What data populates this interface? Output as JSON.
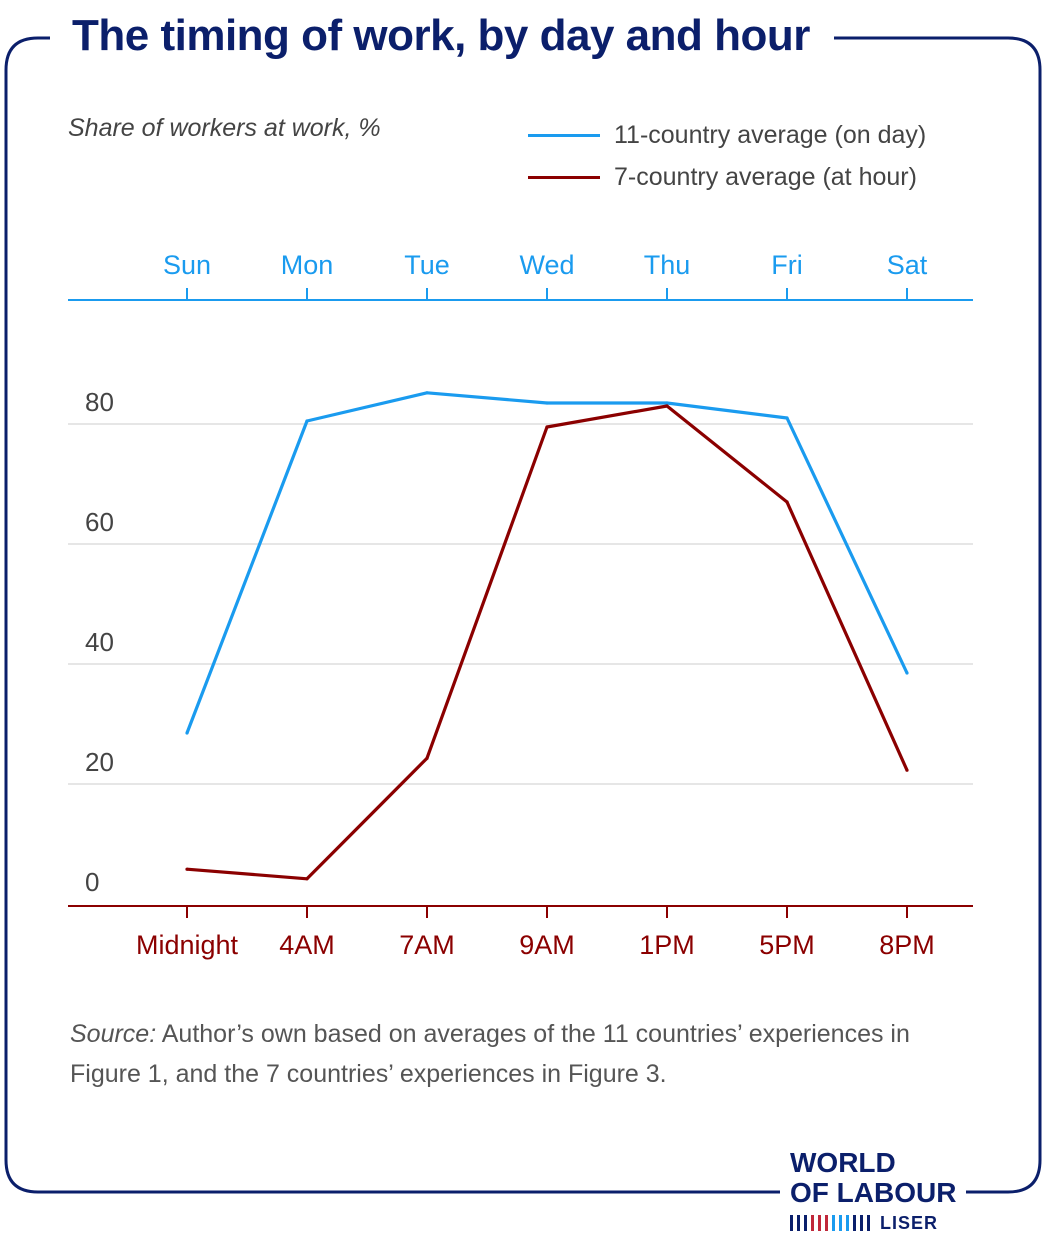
{
  "title": "The timing of work, by day and hour",
  "subtitle": "Share of workers at work, %",
  "source_prefix": "Source:",
  "source_text": " Author’s own based on averages of the 11 countries’ experiences in Figure 1, and the 7 countries’ experiences in Figure 3.",
  "logo": {
    "line1": "WORLD",
    "line2": "OF LABOUR",
    "line3": "LISER"
  },
  "colors": {
    "navy": "#0b1f6b",
    "day_series": "#1a9bef",
    "hour_series": "#8b0000",
    "grid": "#dddddd",
    "text": "#444444"
  },
  "chart_data": {
    "type": "line",
    "ylim": [
      0,
      100
    ],
    "yticks": [
      0,
      20,
      40,
      60,
      80
    ],
    "top_axis": {
      "labels": [
        "Sun",
        "Mon",
        "Tue",
        "Wed",
        "Thu",
        "Fri",
        "Sat"
      ]
    },
    "bottom_axis": {
      "labels": [
        "Midnight",
        "4AM",
        "7AM",
        "9AM",
        "1PM",
        "5PM",
        "8PM"
      ]
    },
    "series": [
      {
        "name": "11-country average (on day)",
        "axis": "top",
        "color": "#1a9bef",
        "values": [
          28.5,
          80.5,
          85.2,
          83.5,
          83.5,
          81,
          38.5
        ]
      },
      {
        "name": "7-country average (at hour)",
        "axis": "bottom",
        "color": "#8b0000",
        "values": [
          5.8,
          4.2,
          24.3,
          79.5,
          83,
          67,
          22.3
        ]
      }
    ]
  }
}
